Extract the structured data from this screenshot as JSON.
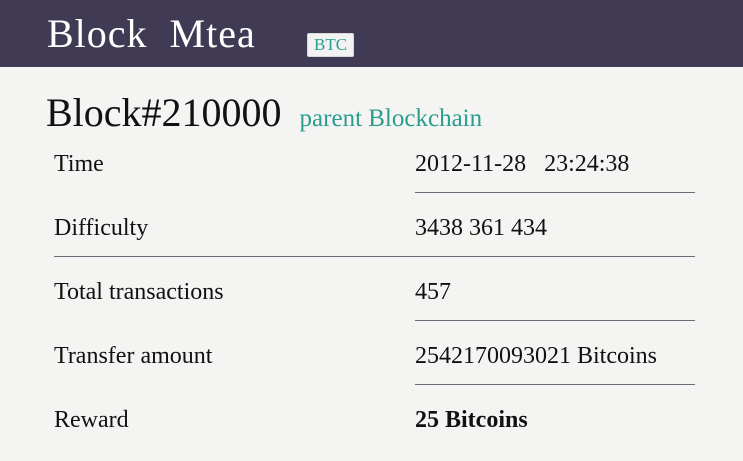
{
  "header": {
    "brand": "Block  Mtea",
    "currency_badge": "BTC",
    "background_color": "#403a54"
  },
  "block": {
    "title": "Block#210000",
    "parent_link": "parent Blockchain",
    "link_color": "#2a9d8f"
  },
  "details": {
    "time": {
      "label": "Time",
      "value": "2012-11-28   23:24:38"
    },
    "difficulty": {
      "label": "Difficulty",
      "value": "3438 361 434"
    },
    "total_transactions": {
      "label": "Total transactions",
      "value": "457"
    },
    "transfer_amount": {
      "label": "Transfer amount",
      "value": "2542170093021 Bitcoins"
    },
    "reward": {
      "label": "Reward",
      "value": "25 Bitcoins"
    }
  }
}
